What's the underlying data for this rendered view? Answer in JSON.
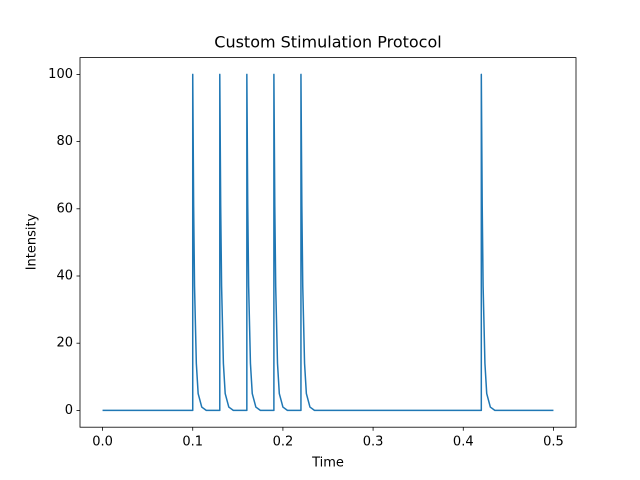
{
  "chart_data": {
    "type": "line",
    "title": "Custom Stimulation Protocol",
    "x_label": "Time",
    "y_label": "Intensity",
    "x": [
      0,
      0.1,
      0.1,
      0.101,
      0.102,
      0.104,
      0.106,
      0.11,
      0.115,
      0.13,
      0.13,
      0.131,
      0.132,
      0.134,
      0.136,
      0.14,
      0.145,
      0.16,
      0.16,
      0.161,
      0.162,
      0.164,
      0.166,
      0.17,
      0.175,
      0.19,
      0.19,
      0.191,
      0.192,
      0.194,
      0.196,
      0.2,
      0.205,
      0.22,
      0.22,
      0.221,
      0.222,
      0.224,
      0.226,
      0.23,
      0.235,
      0.42,
      0.42,
      0.421,
      0.422,
      0.424,
      0.426,
      0.43,
      0.435,
      0.5
    ],
    "values": [
      0,
      0,
      100,
      61,
      37,
      14,
      5,
      1,
      0,
      0,
      100,
      61,
      37,
      14,
      5,
      1,
      0,
      0,
      100,
      61,
      37,
      14,
      5,
      1,
      0,
      0,
      100,
      61,
      37,
      14,
      5,
      1,
      0,
      0,
      100,
      61,
      37,
      14,
      5,
      1,
      0,
      0,
      100,
      61,
      37,
      14,
      5,
      1,
      0,
      0
    ],
    "color": "#1f77b4",
    "xlim": [
      -0.025,
      0.525
    ],
    "xticks": [
      {
        "value": 0,
        "label": "0.0"
      },
      0.1,
      0.2,
      0.3,
      0.4,
      0.5
    ],
    "ylim": [
      -5,
      105
    ],
    "yticks": [
      0,
      20,
      40,
      60,
      80,
      100
    ],
    "grid": false
  }
}
